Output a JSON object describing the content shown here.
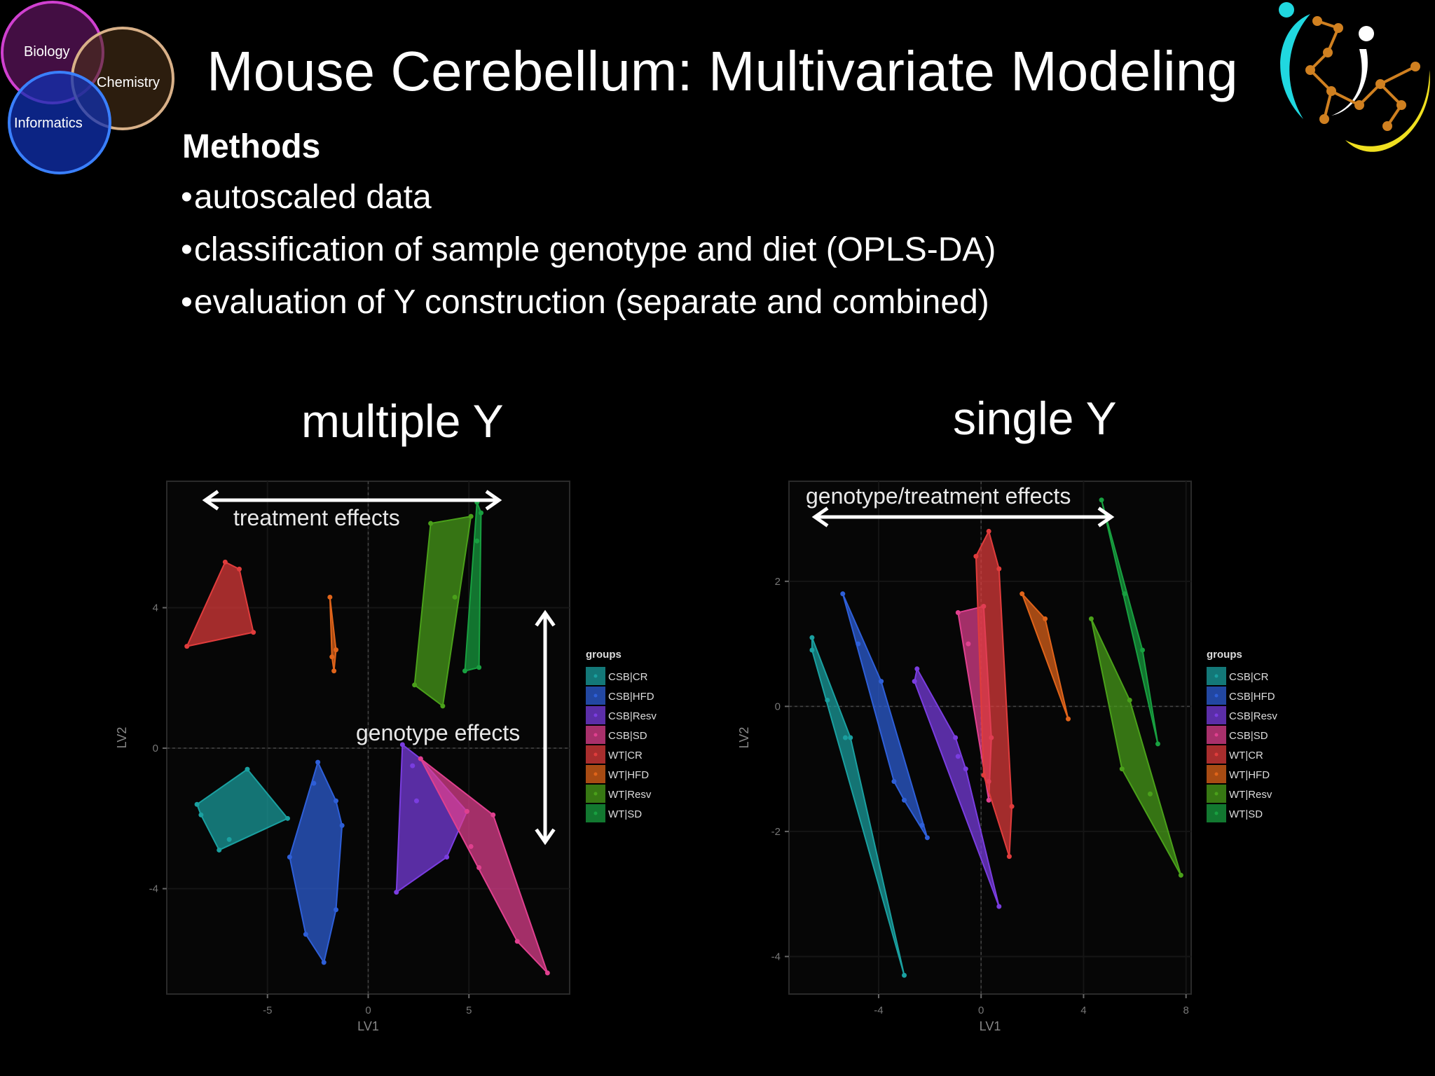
{
  "slide": {
    "title": "Mouse Cerebellum: Multivariate Modeling",
    "methods_heading": "Methods",
    "bullets": [
      "autoscaled data",
      "classification of sample genotype and diet (OPLS-DA)",
      "evaluation of Y construction (separate and combined)"
    ],
    "venn_labels": [
      "Biology",
      "Chemistry",
      "Informatics"
    ],
    "venn_colors": [
      "#c020c0",
      "#c8a070",
      "#2060ff"
    ]
  },
  "legend": {
    "title": "groups",
    "entries": [
      "CSB|CR",
      "CSB|HFD",
      "CSB|Resv",
      "CSB|SD",
      "WT|CR",
      "WT|HFD",
      "WT|Resv",
      "WT|SD"
    ],
    "colors": [
      "#1aa0a0",
      "#2e5fd8",
      "#7a3de0",
      "#e0408f",
      "#e03c3c",
      "#e0641a",
      "#4aa01a",
      "#18a040"
    ]
  },
  "chart_data": [
    {
      "type": "scatter",
      "title": "multiple Y",
      "xlabel": "LV1",
      "ylabel": "LV2",
      "xlim": [
        -10,
        10
      ],
      "ylim": [
        -7,
        7.6
      ],
      "xticks": [
        -5,
        0,
        5
      ],
      "yticks": [
        -4,
        0,
        4
      ],
      "annotations": [
        "treatment effects",
        "genotype effects"
      ],
      "groups": [
        {
          "name": "CSB|CR",
          "points": [
            [
              -8.5,
              -1.6
            ],
            [
              -8.3,
              -1.9
            ],
            [
              -7.4,
              -2.9
            ],
            [
              -6.9,
              -2.6
            ],
            [
              -6.0,
              -0.6
            ],
            [
              -4.0,
              -2.0
            ]
          ]
        },
        {
          "name": "CSB|HFD",
          "points": [
            [
              -2.5,
              -0.4
            ],
            [
              -2.7,
              -1.0
            ],
            [
              -1.6,
              -1.5
            ],
            [
              -1.3,
              -2.2
            ],
            [
              -1.6,
              -4.6
            ],
            [
              -2.2,
              -6.1
            ],
            [
              -3.1,
              -5.3
            ],
            [
              -3.9,
              -3.1
            ]
          ]
        },
        {
          "name": "CSB|Resv",
          "points": [
            [
              1.7,
              0.1
            ],
            [
              2.2,
              -0.5
            ],
            [
              2.4,
              -1.5
            ],
            [
              3.9,
              -3.1
            ],
            [
              4.9,
              -1.8
            ],
            [
              2.6,
              -0.3
            ],
            [
              1.4,
              -4.1
            ]
          ]
        },
        {
          "name": "CSB|SD",
          "points": [
            [
              2.6,
              -0.3
            ],
            [
              6.2,
              -1.9
            ],
            [
              8.9,
              -6.4
            ],
            [
              7.4,
              -5.5
            ],
            [
              5.5,
              -3.4
            ],
            [
              5.1,
              -2.8
            ],
            [
              4.9,
              -1.8
            ]
          ]
        },
        {
          "name": "WT|CR",
          "points": [
            [
              -7.1,
              5.3
            ],
            [
              -6.4,
              5.1
            ],
            [
              -5.7,
              3.3
            ],
            [
              -9.0,
              2.9
            ]
          ]
        },
        {
          "name": "WT|HFD",
          "points": [
            [
              -1.9,
              4.3
            ],
            [
              -1.6,
              2.8
            ],
            [
              -1.7,
              2.2
            ],
            [
              -1.8,
              2.6
            ]
          ]
        },
        {
          "name": "WT|Resv",
          "points": [
            [
              3.1,
              6.4
            ],
            [
              5.1,
              6.6
            ],
            [
              4.3,
              4.3
            ],
            [
              3.7,
              1.2
            ],
            [
              2.3,
              1.8
            ]
          ]
        },
        {
          "name": "WT|SD",
          "points": [
            [
              5.4,
              7.0
            ],
            [
              5.6,
              6.7
            ],
            [
              5.4,
              5.9
            ],
            [
              5.5,
              2.3
            ],
            [
              4.8,
              2.2
            ]
          ]
        }
      ]
    },
    {
      "type": "scatter",
      "title": "single Y",
      "xlabel": "LV1",
      "ylabel": "LV2",
      "xlim": [
        -7.5,
        8.2
      ],
      "ylim": [
        -4.6,
        3.6
      ],
      "xticks": [
        -4,
        0,
        4,
        8
      ],
      "yticks": [
        -4,
        -2,
        0,
        2
      ],
      "annotations": [
        "genotype/treatment effects"
      ],
      "groups": [
        {
          "name": "CSB|CR",
          "points": [
            [
              -6.6,
              1.1
            ],
            [
              -6.6,
              0.9
            ],
            [
              -6.0,
              0.1
            ],
            [
              -5.3,
              -0.5
            ],
            [
              -5.1,
              -0.5
            ],
            [
              -3.0,
              -4.3
            ]
          ]
        },
        {
          "name": "CSB|HFD",
          "points": [
            [
              -5.4,
              1.8
            ],
            [
              -4.8,
              1.0
            ],
            [
              -3.9,
              0.4
            ],
            [
              -3.4,
              -1.2
            ],
            [
              -3.0,
              -1.5
            ],
            [
              -2.3,
              -1.9
            ],
            [
              -2.1,
              -2.1
            ]
          ]
        },
        {
          "name": "CSB|Resv",
          "points": [
            [
              -2.5,
              0.6
            ],
            [
              -2.6,
              0.4
            ],
            [
              -1.0,
              -0.5
            ],
            [
              -0.9,
              -0.8
            ],
            [
              -0.6,
              -1.0
            ],
            [
              0.7,
              -3.2
            ]
          ]
        },
        {
          "name": "CSB|SD",
          "points": [
            [
              -0.9,
              1.5
            ],
            [
              -0.5,
              1.0
            ],
            [
              0.1,
              1.6
            ],
            [
              0.4,
              -0.5
            ],
            [
              0.3,
              -1.2
            ],
            [
              0.3,
              -1.5
            ]
          ]
        },
        {
          "name": "WT|CR",
          "points": [
            [
              0.3,
              2.8
            ],
            [
              0.7,
              2.2
            ],
            [
              -0.2,
              2.4
            ],
            [
              1.2,
              -1.6
            ],
            [
              1.1,
              -2.4
            ],
            [
              0.1,
              -1.1
            ]
          ]
        },
        {
          "name": "WT|HFD",
          "points": [
            [
              1.6,
              1.8
            ],
            [
              2.5,
              1.4
            ],
            [
              3.4,
              -0.2
            ]
          ]
        },
        {
          "name": "WT|Resv",
          "points": [
            [
              4.3,
              1.4
            ],
            [
              5.8,
              0.1
            ],
            [
              5.5,
              -1.0
            ],
            [
              6.6,
              -1.4
            ],
            [
              7.8,
              -2.7
            ]
          ]
        },
        {
          "name": "WT|SD",
          "points": [
            [
              4.7,
              3.3
            ],
            [
              5.6,
              1.8
            ],
            [
              6.3,
              0.9
            ],
            [
              6.9,
              -0.6
            ]
          ]
        }
      ]
    }
  ]
}
